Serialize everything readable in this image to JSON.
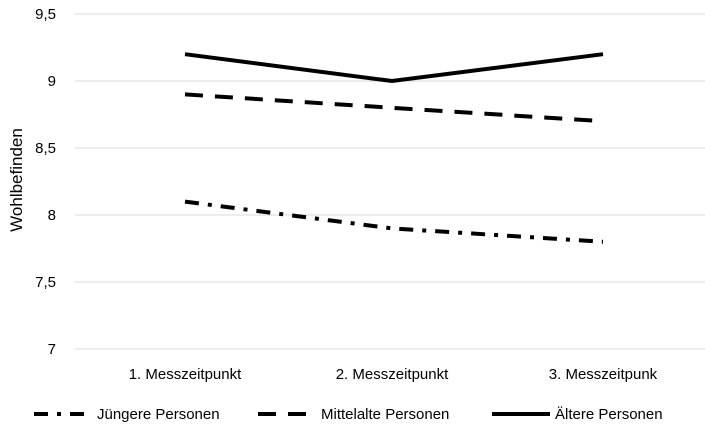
{
  "chart_data": {
    "type": "line",
    "ylabel": "Wohlbefinden",
    "xlabel": "",
    "ylim": [
      7,
      9.5
    ],
    "y_ticks": [
      "7",
      "7,5",
      "8",
      "8,5",
      "9",
      "9,5"
    ],
    "y_tick_values": [
      7,
      7.5,
      8,
      8.5,
      9,
      9.5
    ],
    "categories": [
      "1. Messzeitpunkt",
      "2. Messzeitpunkt",
      "3. Messzeitpunk"
    ],
    "grid": "horizontal",
    "legend_position": "bottom",
    "series": [
      {
        "name": "Jüngere Personen",
        "values": [
          8.1,
          7.9,
          7.8
        ],
        "line_style": "dash-dot",
        "color": "#000000"
      },
      {
        "name": "Mittelalte Personen",
        "values": [
          8.9,
          8.8,
          8.7
        ],
        "line_style": "dashed",
        "color": "#000000"
      },
      {
        "name": "Ältere Personen",
        "values": [
          9.2,
          9.0,
          9.2
        ],
        "line_style": "solid",
        "color": "#000000"
      }
    ]
  }
}
